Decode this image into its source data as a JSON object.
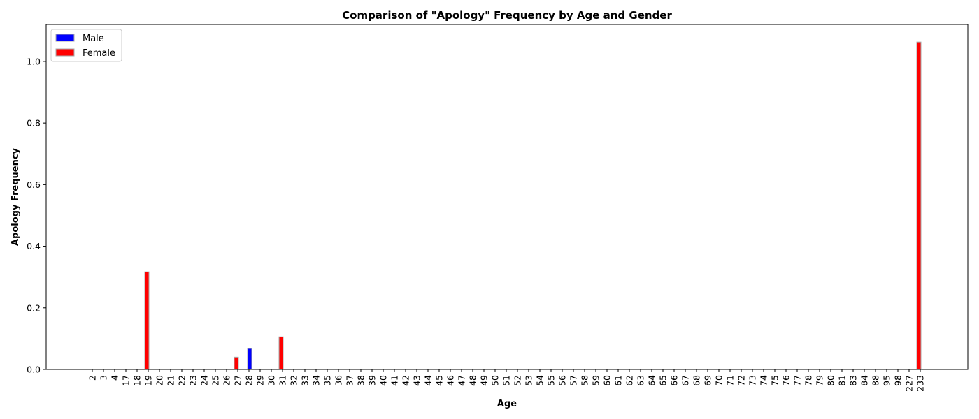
{
  "chart_data": {
    "type": "bar",
    "title": "Comparison of \"Apology\" Frequency by Age and Gender",
    "xlabel": "Age",
    "ylabel": "Apology Frequency",
    "ylim": [
      0,
      1.12
    ],
    "yticks": [
      "0.0",
      "0.2",
      "0.4",
      "0.6",
      "0.8",
      "1.0"
    ],
    "categories": [
      "2",
      "3",
      "4",
      "17",
      "18",
      "19",
      "20",
      "21",
      "22",
      "23",
      "24",
      "25",
      "26",
      "27",
      "28",
      "29",
      "30",
      "31",
      "32",
      "33",
      "34",
      "35",
      "36",
      "37",
      "38",
      "39",
      "40",
      "41",
      "42",
      "43",
      "44",
      "45",
      "46",
      "47",
      "48",
      "49",
      "50",
      "51",
      "52",
      "53",
      "54",
      "55",
      "56",
      "57",
      "58",
      "59",
      "60",
      "61",
      "62",
      "63",
      "64",
      "65",
      "66",
      "67",
      "68",
      "69",
      "70",
      "71",
      "72",
      "73",
      "74",
      "75",
      "76",
      "77",
      "78",
      "79",
      "80",
      "81",
      "83",
      "84",
      "88",
      "95",
      "98",
      "227",
      "233"
    ],
    "series": [
      {
        "name": "Male",
        "color": "#0000ff",
        "values": [
          0,
          0,
          0,
          0,
          0,
          0,
          0,
          0,
          0,
          0,
          0,
          0,
          0,
          0,
          0.068,
          0,
          0,
          0,
          0,
          0,
          0,
          0,
          0,
          0,
          0,
          0,
          0,
          0,
          0,
          0,
          0,
          0,
          0,
          0,
          0,
          0,
          0,
          0,
          0,
          0,
          0,
          0,
          0,
          0,
          0,
          0,
          0,
          0,
          0,
          0,
          0,
          0,
          0,
          0,
          0,
          0,
          0,
          0,
          0,
          0,
          0,
          0,
          0,
          0,
          0,
          0,
          0,
          0,
          0,
          0,
          0,
          0,
          0,
          0,
          0
        ]
      },
      {
        "name": "Female",
        "color": "#ff0000",
        "values": [
          0,
          0,
          0,
          0,
          0,
          0.317,
          0,
          0,
          0,
          0,
          0,
          0,
          0,
          0.04,
          0,
          0,
          0,
          0.106,
          0,
          0,
          0,
          0,
          0,
          0,
          0,
          0,
          0,
          0,
          0,
          0,
          0,
          0,
          0,
          0,
          0,
          0,
          0,
          0,
          0,
          0,
          0,
          0,
          0,
          0,
          0,
          0,
          0,
          0,
          0,
          0,
          0,
          0,
          0,
          0,
          0,
          0,
          0,
          0,
          0,
          0,
          0,
          0,
          0,
          0,
          0,
          0,
          0,
          0,
          0,
          0,
          0,
          0,
          0,
          0,
          1.063
        ]
      }
    ],
    "legend_position": "top-left",
    "grid": false
  }
}
